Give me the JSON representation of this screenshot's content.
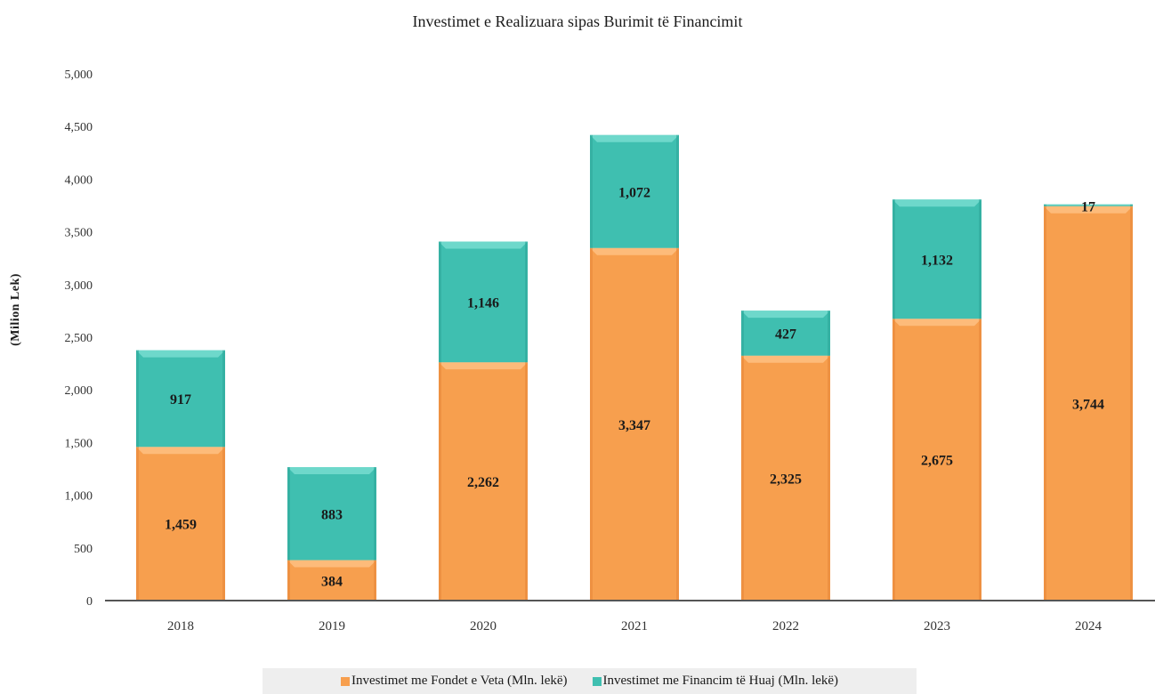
{
  "chart_data": {
    "type": "bar",
    "stacked": true,
    "title": "Investimet e Realizuara sipas Burimit të Financimit",
    "ylabel": "(Milion Lek)",
    "xlabel": "",
    "categories": [
      "2018",
      "2019",
      "2020",
      "2021",
      "2022",
      "2023",
      "2024"
    ],
    "series": [
      {
        "name": "Investimet me Fondet e Veta (Mln. lekë)",
        "values": [
          1459,
          384,
          2262,
          3347,
          2325,
          2675,
          3744
        ],
        "color": "#f79f4e"
      },
      {
        "name": "Investimet me Financim të Huaj (Mln. lekë)",
        "values": [
          917,
          883,
          1146,
          1072,
          427,
          1132,
          17
        ],
        "color": "#3fbfb0"
      }
    ],
    "data_labels": [
      [
        "1,459",
        "384",
        "2,262",
        "3,347",
        "2,325",
        "2,675",
        "3,744"
      ],
      [
        "917",
        "883",
        "1,146",
        "1,072",
        "427",
        "1,132",
        "17"
      ]
    ],
    "ylim": [
      0,
      5000
    ],
    "yticks": [
      0,
      500,
      1000,
      1500,
      2000,
      2500,
      3000,
      3500,
      4000,
      4500,
      5000
    ],
    "ytick_labels": [
      "0",
      "500",
      "1,000",
      "1,500",
      "2,000",
      "2,500",
      "3,000",
      "3,500",
      "4,000",
      "4,500",
      "5,000"
    ],
    "grid": false,
    "legend_position": "bottom"
  }
}
